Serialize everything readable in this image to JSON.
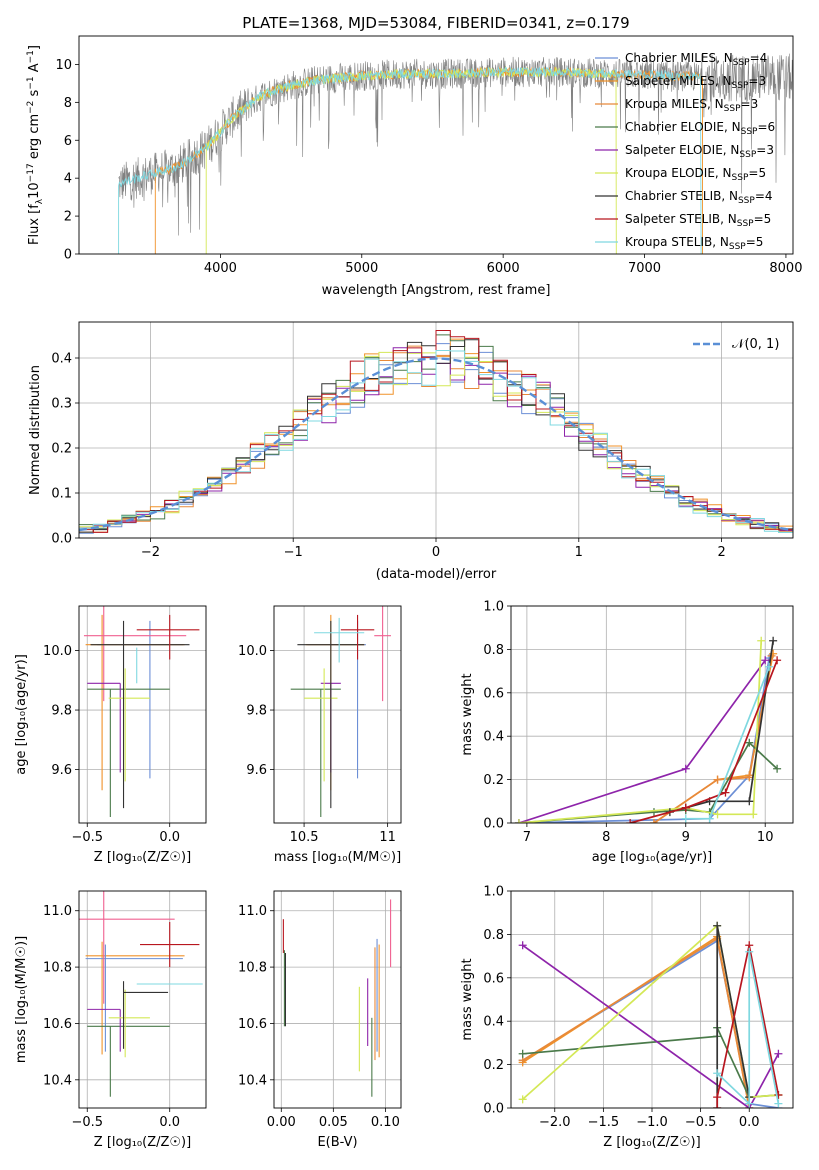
{
  "title": "PLATE=1368, MJD=53084, FIBERID=0341, z=0.179",
  "colors": {
    "miles_chabrier": "#6c8fd6",
    "miles_salpeter": "#f0922a",
    "miles_kroupa": "#e8893a",
    "elodie_chabrier": "#4a7a4a",
    "elodie_salpeter": "#8e24aa",
    "elodie_kroupa": "#d4e857",
    "stelib_chabrier": "#333333",
    "stelib_salpeter": "#b8161f",
    "stelib_kroupa": "#7fd8e0",
    "pink": "#f06090",
    "data": "#808080",
    "normal": "#5a8fd6"
  },
  "chart_data": [
    {
      "type": "line",
      "id": "spectrum",
      "title": "PLATE=1368, MJD=53084, FIBERID=0341, z=0.179",
      "xlabel": "wavelength [Angstrom, rest frame]",
      "ylabel_pre": "Flux [f",
      "ylabel_sub": "λ",
      "ylabel_mid": "10",
      "ylabel_exp": "−17",
      "ylabel_post": " erg cm",
      "ylabel_exp2": "−2",
      "ylabel_post2": " s",
      "ylabel_exp3": "−1",
      "ylabel_post3": " A",
      "ylabel_exp4": "−1",
      "ylabel_end": "]",
      "xlim": [
        3000,
        8050
      ],
      "ylim": [
        0,
        11.5
      ],
      "xticks": [
        4000,
        5000,
        6000,
        7000,
        8000
      ],
      "yticks": [
        0,
        2,
        4,
        6,
        8,
        10
      ],
      "legend_position": "right",
      "legend": [
        {
          "label": "Chabrier MILES, N",
          "sub": "SSP",
          "tail": "=4",
          "color": "#6c8fd6"
        },
        {
          "label": "Salpeter MILES, N",
          "sub": "SSP",
          "tail": "=3",
          "color": "#f0922a"
        },
        {
          "label": "Kroupa MILES, N",
          "sub": "SSP",
          "tail": "=3",
          "color": "#e8893a"
        },
        {
          "label": "Chabrier ELODIE, N",
          "sub": "SSP",
          "tail": "=6",
          "color": "#4a7a4a"
        },
        {
          "label": "Salpeter ELODIE, N",
          "sub": "SSP",
          "tail": "=3",
          "color": "#8e24aa"
        },
        {
          "label": "Kroupa ELODIE, N",
          "sub": "SSP",
          "tail": "=5",
          "color": "#d4e857"
        },
        {
          "label": "Chabrier STELIB, N",
          "sub": "SSP",
          "tail": "=4",
          "color": "#333333"
        },
        {
          "label": "Salpeter STELIB, N",
          "sub": "SSP",
          "tail": "=5",
          "color": "#b8161f"
        },
        {
          "label": "Kroupa STELIB, N",
          "sub": "SSP",
          "tail": "=5",
          "color": "#7fd8e0"
        }
      ],
      "continuum": {
        "x": [
          3280,
          3500,
          3700,
          3900,
          4100,
          4300,
          4500,
          4700,
          5000,
          5300,
          5600,
          6000,
          6400,
          6800,
          7200,
          7500
        ],
        "y": [
          3.7,
          4.2,
          4.6,
          5.6,
          7.3,
          8.4,
          8.9,
          9.2,
          9.4,
          9.5,
          9.5,
          9.6,
          9.6,
          9.5,
          9.4,
          9.3
        ]
      },
      "model_ranges": [
        {
          "name": "MILES",
          "x": [
            3540,
            7410
          ],
          "color": "#f0922a"
        },
        {
          "name": "ELODIE",
          "x": [
            3900,
            6800
          ],
          "color": "#d4e857"
        },
        {
          "name": "STELIB",
          "x": [
            3280,
            7400
          ],
          "color": "#7fd8e0"
        }
      ]
    },
    {
      "type": "bar",
      "id": "residuals",
      "xlabel": "(data-model)/error",
      "ylabel": "Normed distribution",
      "xlim": [
        -2.5,
        2.5
      ],
      "ylim": [
        0,
        0.48
      ],
      "xticks": [
        -2,
        -1,
        0,
        1,
        2
      ],
      "yticks": [
        0.0,
        0.1,
        0.2,
        0.3,
        0.4
      ],
      "legend": [
        {
          "label": "𝒩(0, 1)",
          "color": "#5a8fd6",
          "style": "dashed"
        }
      ],
      "bin_width": 0.1,
      "series_colors": [
        "#6c8fd6",
        "#f0922a",
        "#e8893a",
        "#4a7a4a",
        "#8e24aa",
        "#d4e857",
        "#333333",
        "#b8161f",
        "#7fd8e0"
      ]
    },
    {
      "type": "scatter",
      "id": "age-vs-Z",
      "xlabel": "Z [log₁₀(Z/Z☉)]",
      "ylabel": "age  [log₁₀(age/yr)]",
      "xlim": [
        -0.55,
        0.22
      ],
      "ylim": [
        9.42,
        10.15
      ],
      "xticks": [
        -0.5,
        0.0
      ],
      "yticks": [
        9.6,
        9.8,
        10.0
      ],
      "points": [
        {
          "x": -0.12,
          "xerr": [
            0.32,
            0.2
          ],
          "y": 10.02,
          "yerr": [
            0.45,
            0.08
          ],
          "color": "#6c8fd6"
        },
        {
          "x": -0.41,
          "xerr": [
            0.1,
            0.5
          ],
          "y": 10.02,
          "yerr": [
            0.49,
            0.1
          ],
          "color": "#f0922a"
        },
        {
          "x": -0.4,
          "xerr": [
            0.12,
            0.5
          ],
          "y": 10.05,
          "yerr": [
            0.22,
            0.1
          ],
          "color": "#f06090"
        },
        {
          "x": -0.5,
          "xerr": [
            0.0,
            0.5
          ],
          "y": 9.87,
          "yerr": [
            0.0,
            0.0
          ],
          "color": "#4a7a4a"
        },
        {
          "x": -0.36,
          "xerr": [
            0.0,
            0.0
          ],
          "y": 9.87,
          "yerr": [
            0.43,
            0.0
          ],
          "color": "#4a7a4a"
        },
        {
          "x": -0.3,
          "xerr": [
            0.2,
            0.0
          ],
          "y": 9.89,
          "yerr": [
            0.3,
            0.0
          ],
          "color": "#8e24aa"
        },
        {
          "x": -0.27,
          "xerr": [
            0.1,
            0.15
          ],
          "y": 9.84,
          "yerr": [
            0.28,
            0.1
          ],
          "color": "#d4e857"
        },
        {
          "x": -0.28,
          "xerr": [
            0.2,
            0.4
          ],
          "y": 10.02,
          "yerr": [
            0.55,
            0.08
          ],
          "color": "#333333"
        },
        {
          "x": 0.0,
          "xerr": [
            0.2,
            0.18
          ],
          "y": 10.07,
          "yerr": [
            0.1,
            0.05
          ],
          "color": "#b8161f"
        },
        {
          "x": -0.2,
          "xerr": [
            0.0,
            0.0
          ],
          "y": 10.01,
          "yerr": [
            0.12,
            0.0
          ],
          "color": "#7fd8e0"
        }
      ]
    },
    {
      "type": "scatter",
      "id": "age-vs-mass",
      "xlabel": "mass [log₁₀(M/M☉)]",
      "xlim": [
        10.32,
        11.08
      ],
      "ylim": [
        9.42,
        10.15
      ],
      "xticks": [
        10.5,
        11.0
      ],
      "yticks": [
        9.6,
        9.8,
        10.0
      ],
      "points": [
        {
          "x": 10.82,
          "xerr": [
            0.3,
            0.05
          ],
          "y": 10.02,
          "yerr": [
            0.45,
            0.08
          ],
          "color": "#6c8fd6"
        },
        {
          "x": 10.66,
          "xerr": [
            0.15,
            0.2
          ],
          "y": 10.02,
          "yerr": [
            0.49,
            0.1
          ],
          "color": "#f0922a"
        },
        {
          "x": 10.97,
          "xerr": [
            0.05,
            0.05
          ],
          "y": 10.05,
          "yerr": [
            0.22,
            0.1
          ],
          "color": "#f06090"
        },
        {
          "x": 10.6,
          "xerr": [
            0.18,
            0.12
          ],
          "y": 9.87,
          "yerr": [
            0.43,
            0.0
          ],
          "color": "#4a7a4a"
        },
        {
          "x": 10.66,
          "xerr": [
            0.06,
            0.06
          ],
          "y": 9.89,
          "yerr": [
            0.3,
            0.0
          ],
          "color": "#8e24aa"
        },
        {
          "x": 10.62,
          "xerr": [
            0.12,
            0.08
          ],
          "y": 9.84,
          "yerr": [
            0.28,
            0.1
          ],
          "color": "#d4e857"
        },
        {
          "x": 10.66,
          "xerr": [
            0.2,
            0.2
          ],
          "y": 10.02,
          "yerr": [
            0.55,
            0.08
          ],
          "color": "#333333"
        },
        {
          "x": 10.82,
          "xerr": [
            0.1,
            0.1
          ],
          "y": 10.07,
          "yerr": [
            0.1,
            0.05
          ],
          "color": "#b8161f"
        },
        {
          "x": 10.71,
          "xerr": [
            0.15,
            0.15
          ],
          "y": 10.06,
          "yerr": [
            0.1,
            0.05
          ],
          "color": "#7fd8e0"
        }
      ]
    },
    {
      "type": "line",
      "id": "mass-weight-vs-age",
      "xlabel": "age  [log₁₀(age/yr)]",
      "ylabel": "mass weight",
      "xlim": [
        6.8,
        10.35
      ],
      "ylim": [
        0,
        1.0
      ],
      "xticks": [
        7,
        8,
        9,
        10
      ],
      "yticks": [
        0.0,
        0.2,
        0.4,
        0.6,
        0.8,
        1.0
      ],
      "series": [
        {
          "color": "#6c8fd6",
          "x": [
            6.9,
            9.3,
            9.8,
            10.05
          ],
          "y": [
            0.0,
            0.02,
            0.22,
            0.76
          ]
        },
        {
          "color": "#f0922a",
          "x": [
            8.6,
            9.4,
            9.8,
            10.1
          ],
          "y": [
            0.0,
            0.2,
            0.22,
            0.78
          ]
        },
        {
          "color": "#e8893a",
          "x": [
            8.6,
            9.4,
            9.8,
            10.08
          ],
          "y": [
            0.0,
            0.2,
            0.21,
            0.77
          ]
        },
        {
          "color": "#4a7a4a",
          "x": [
            6.9,
            8.6,
            9.0,
            9.3,
            9.8,
            10.15
          ],
          "y": [
            0.0,
            0.05,
            0.06,
            0.05,
            0.37,
            0.25
          ]
        },
        {
          "color": "#8e24aa",
          "x": [
            6.9,
            9.0,
            10.0
          ],
          "y": [
            0.0,
            0.25,
            0.75
          ]
        },
        {
          "color": "#d4e857",
          "x": [
            6.9,
            9.0,
            9.4,
            9.85,
            9.95
          ],
          "y": [
            0.0,
            0.07,
            0.04,
            0.04,
            0.84
          ]
        },
        {
          "color": "#333333",
          "x": [
            8.8,
            9.0,
            9.3,
            9.8,
            10.1
          ],
          "y": [
            0.05,
            0.07,
            0.1,
            0.1,
            0.84
          ]
        },
        {
          "color": "#b8161f",
          "x": [
            8.3,
            9.0,
            9.5,
            10.15
          ],
          "y": [
            0.0,
            0.07,
            0.14,
            0.75
          ]
        },
        {
          "color": "#7fd8e0",
          "x": [
            9.0,
            9.3,
            10.05
          ],
          "y": [
            0.02,
            0.02,
            0.72
          ]
        }
      ]
    },
    {
      "type": "scatter",
      "id": "mass-vs-Z",
      "xlabel": "Z [log₁₀(Z/Z☉)]",
      "ylabel": "mass [log₁₀(M/M☉)]",
      "xlim": [
        -0.55,
        0.22
      ],
      "ylim": [
        10.3,
        11.07
      ],
      "xticks": [
        -0.5,
        0.0
      ],
      "yticks": [
        10.4,
        10.6,
        10.8,
        11.0
      ],
      "points": [
        {
          "x": 0.0,
          "xerr": [
            0.2,
            0.2
          ],
          "y": 10.74,
          "yerr": [
            0.0,
            0.0
          ],
          "color": "#7fd8e0"
        },
        {
          "x": -0.41,
          "xerr": [
            0.1,
            0.5
          ],
          "y": 10.84,
          "yerr": [
            0.35,
            0.05
          ],
          "color": "#f0922a"
        },
        {
          "x": -0.39,
          "xerr": [
            0.12,
            0.47
          ],
          "y": 10.83,
          "yerr": [
            0.33,
            0.05
          ],
          "color": "#6c8fd6"
        },
        {
          "x": -0.4,
          "xerr": [
            0.15,
            0.43
          ],
          "y": 10.97,
          "yerr": [
            0.3,
            0.1
          ],
          "color": "#f06090"
        },
        {
          "x": -0.5,
          "xerr": [
            0.0,
            0.5
          ],
          "y": 10.59,
          "yerr": [
            0.0,
            0.0
          ],
          "color": "#4a7a4a"
        },
        {
          "x": -0.36,
          "xerr": [
            0.0,
            0.0
          ],
          "y": 10.59,
          "yerr": [
            0.25,
            0.0
          ],
          "color": "#4a7a4a"
        },
        {
          "x": -0.3,
          "xerr": [
            0.2,
            0.0
          ],
          "y": 10.65,
          "yerr": [
            0.15,
            0.0
          ],
          "color": "#8e24aa"
        },
        {
          "x": -0.27,
          "xerr": [
            0.1,
            0.15
          ],
          "y": 10.62,
          "yerr": [
            0.14,
            0.1
          ],
          "color": "#d4e857"
        },
        {
          "x": -0.28,
          "xerr": [
            0.0,
            0.27
          ],
          "y": 10.71,
          "yerr": [
            0.2,
            0.04
          ],
          "color": "#333333"
        },
        {
          "x": 0.0,
          "xerr": [
            0.18,
            0.18
          ],
          "y": 10.88,
          "yerr": [
            0.08,
            0.08
          ],
          "color": "#b8161f"
        }
      ]
    },
    {
      "type": "scatter",
      "id": "mass-vs-EBV",
      "xlabel": "E(B-V)",
      "xlim": [
        -0.007,
        0.115
      ],
      "ylim": [
        10.3,
        11.07
      ],
      "xticks": [
        0.0,
        0.05,
        0.1
      ],
      "yticks": [
        10.4,
        10.6,
        10.8,
        11.0
      ],
      "points": [
        {
          "x": 0.002,
          "y": 10.85,
          "yerr": [
            0.0,
            0.12
          ],
          "color": "#b8161f"
        },
        {
          "x": 0.003,
          "y": 10.76,
          "yerr": [
            0.17,
            0.1
          ],
          "color": "#4a7a4a"
        },
        {
          "x": 0.004,
          "y": 10.75,
          "yerr": [
            0.16,
            0.1
          ],
          "color": "#333333"
        },
        {
          "x": 0.075,
          "y": 10.58,
          "yerr": [
            0.15,
            0.15
          ],
          "color": "#d4e857"
        },
        {
          "x": 0.083,
          "y": 10.64,
          "yerr": [
            0.12,
            0.12
          ],
          "color": "#8e24aa"
        },
        {
          "x": 0.087,
          "y": 10.5,
          "yerr": [
            0.16,
            0.12
          ],
          "color": "#4a7a4a"
        },
        {
          "x": 0.09,
          "y": 10.67,
          "yerr": [
            0.2,
            0.2
          ],
          "color": "#e8893a"
        },
        {
          "x": 0.092,
          "y": 10.7,
          "yerr": [
            0.2,
            0.2
          ],
          "color": "#6c8fd6"
        },
        {
          "x": 0.094,
          "y": 10.68,
          "yerr": [
            0.2,
            0.2
          ],
          "color": "#f0922a"
        },
        {
          "x": 0.105,
          "y": 10.92,
          "yerr": [
            0.12,
            0.12
          ],
          "color": "#f06090"
        }
      ]
    },
    {
      "type": "line",
      "id": "mass-weight-vs-Z",
      "xlabel": "Z [log₁₀(Z/Z☉)]",
      "ylabel": "mass weight",
      "xlim": [
        -2.45,
        0.45
      ],
      "ylim": [
        0,
        1.0
      ],
      "xticks": [
        -2.0,
        -1.5,
        -1.0,
        -0.5,
        0.0
      ],
      "yticks": [
        0.0,
        0.2,
        0.4,
        0.6,
        0.8,
        1.0
      ],
      "series": [
        {
          "color": "#6c8fd6",
          "x": [
            -2.33,
            -0.33,
            0.0,
            0.3
          ],
          "y": [
            0.22,
            0.77,
            0.02,
            0.0
          ]
        },
        {
          "color": "#f0922a",
          "x": [
            -2.33,
            -0.33,
            0.0
          ],
          "y": [
            0.21,
            0.79,
            0.0
          ]
        },
        {
          "color": "#e8893a",
          "x": [
            -2.33,
            -0.33,
            0.0
          ],
          "y": [
            0.22,
            0.78,
            0.0
          ]
        },
        {
          "color": "#4a7a4a",
          "x": [
            -2.33,
            -0.33,
            -0.33,
            0.0,
            0.3
          ],
          "y": [
            0.25,
            0.33,
            0.37,
            0.05,
            0.06
          ]
        },
        {
          "color": "#8e24aa",
          "x": [
            -2.33,
            0.0,
            0.3
          ],
          "y": [
            0.75,
            0.0,
            0.25
          ]
        },
        {
          "color": "#d4e857",
          "x": [
            -2.33,
            -0.33,
            0.0,
            0.3
          ],
          "y": [
            0.04,
            0.84,
            0.05,
            0.06
          ]
        },
        {
          "color": "#333333",
          "x": [
            -0.33,
            -0.33,
            0.0
          ],
          "y": [
            0.0,
            0.84,
            0.05
          ]
        },
        {
          "color": "#b8161f",
          "x": [
            -0.33,
            -0.33,
            0.0,
            0.3
          ],
          "y": [
            0.0,
            0.05,
            0.75,
            0.06
          ]
        },
        {
          "color": "#7fd8e0",
          "x": [
            -0.33,
            0.0,
            0.0,
            0.3
          ],
          "y": [
            0.16,
            0.02,
            0.72,
            0.02
          ]
        }
      ]
    }
  ]
}
